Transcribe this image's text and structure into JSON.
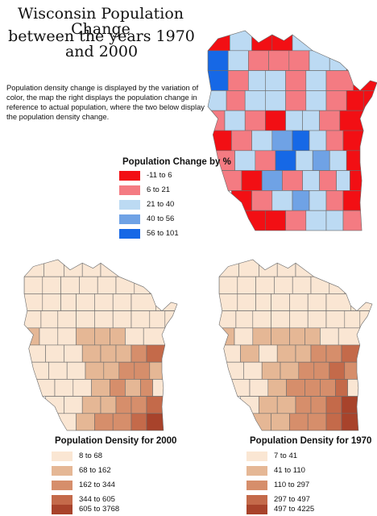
{
  "title_line1": "Wisconsin Population Change",
  "title_line2": "between the years 1970 and 2000",
  "description": "Population density change is displayed by the variation of color, the map the right displays the population change in reference to actual population, where the two below display the population density change.",
  "change_map": {
    "legend_title": "Population Change by %",
    "classes": [
      {
        "label": "-11 to 6",
        "color": "#f20f14"
      },
      {
        "label": "6 to 21",
        "color": "#f47b82"
      },
      {
        "label": "21 to 40",
        "color": "#bcdaf3"
      },
      {
        "label": "40 to 56",
        "color": "#6fa2e5"
      },
      {
        "label": "56 to 101",
        "color": "#1668e6"
      }
    ]
  },
  "density_2000": {
    "legend_title": "Population Density for 2000",
    "classes": [
      {
        "label": "8 to 68",
        "color": "#fae6d3"
      },
      {
        "label": "68 to 162",
        "color": "#e5b795"
      },
      {
        "label": "162 to 344",
        "color": "#d68e6b"
      },
      {
        "label": "344 to 605",
        "color": "#c46a4a"
      },
      {
        "label": "605 to 3768",
        "color": "#a8432b"
      }
    ]
  },
  "density_1970": {
    "legend_title": "Population Density for 1970",
    "classes": [
      {
        "label": "7 to 41",
        "color": "#fae6d3"
      },
      {
        "label": "41 to 110",
        "color": "#e5b795"
      },
      {
        "label": "110 to 297",
        "color": "#d68e6b"
      },
      {
        "label": "297 to 497",
        "color": "#c46a4a"
      },
      {
        "label": "497 to 4225",
        "color": "#a8432b"
      }
    ]
  }
}
